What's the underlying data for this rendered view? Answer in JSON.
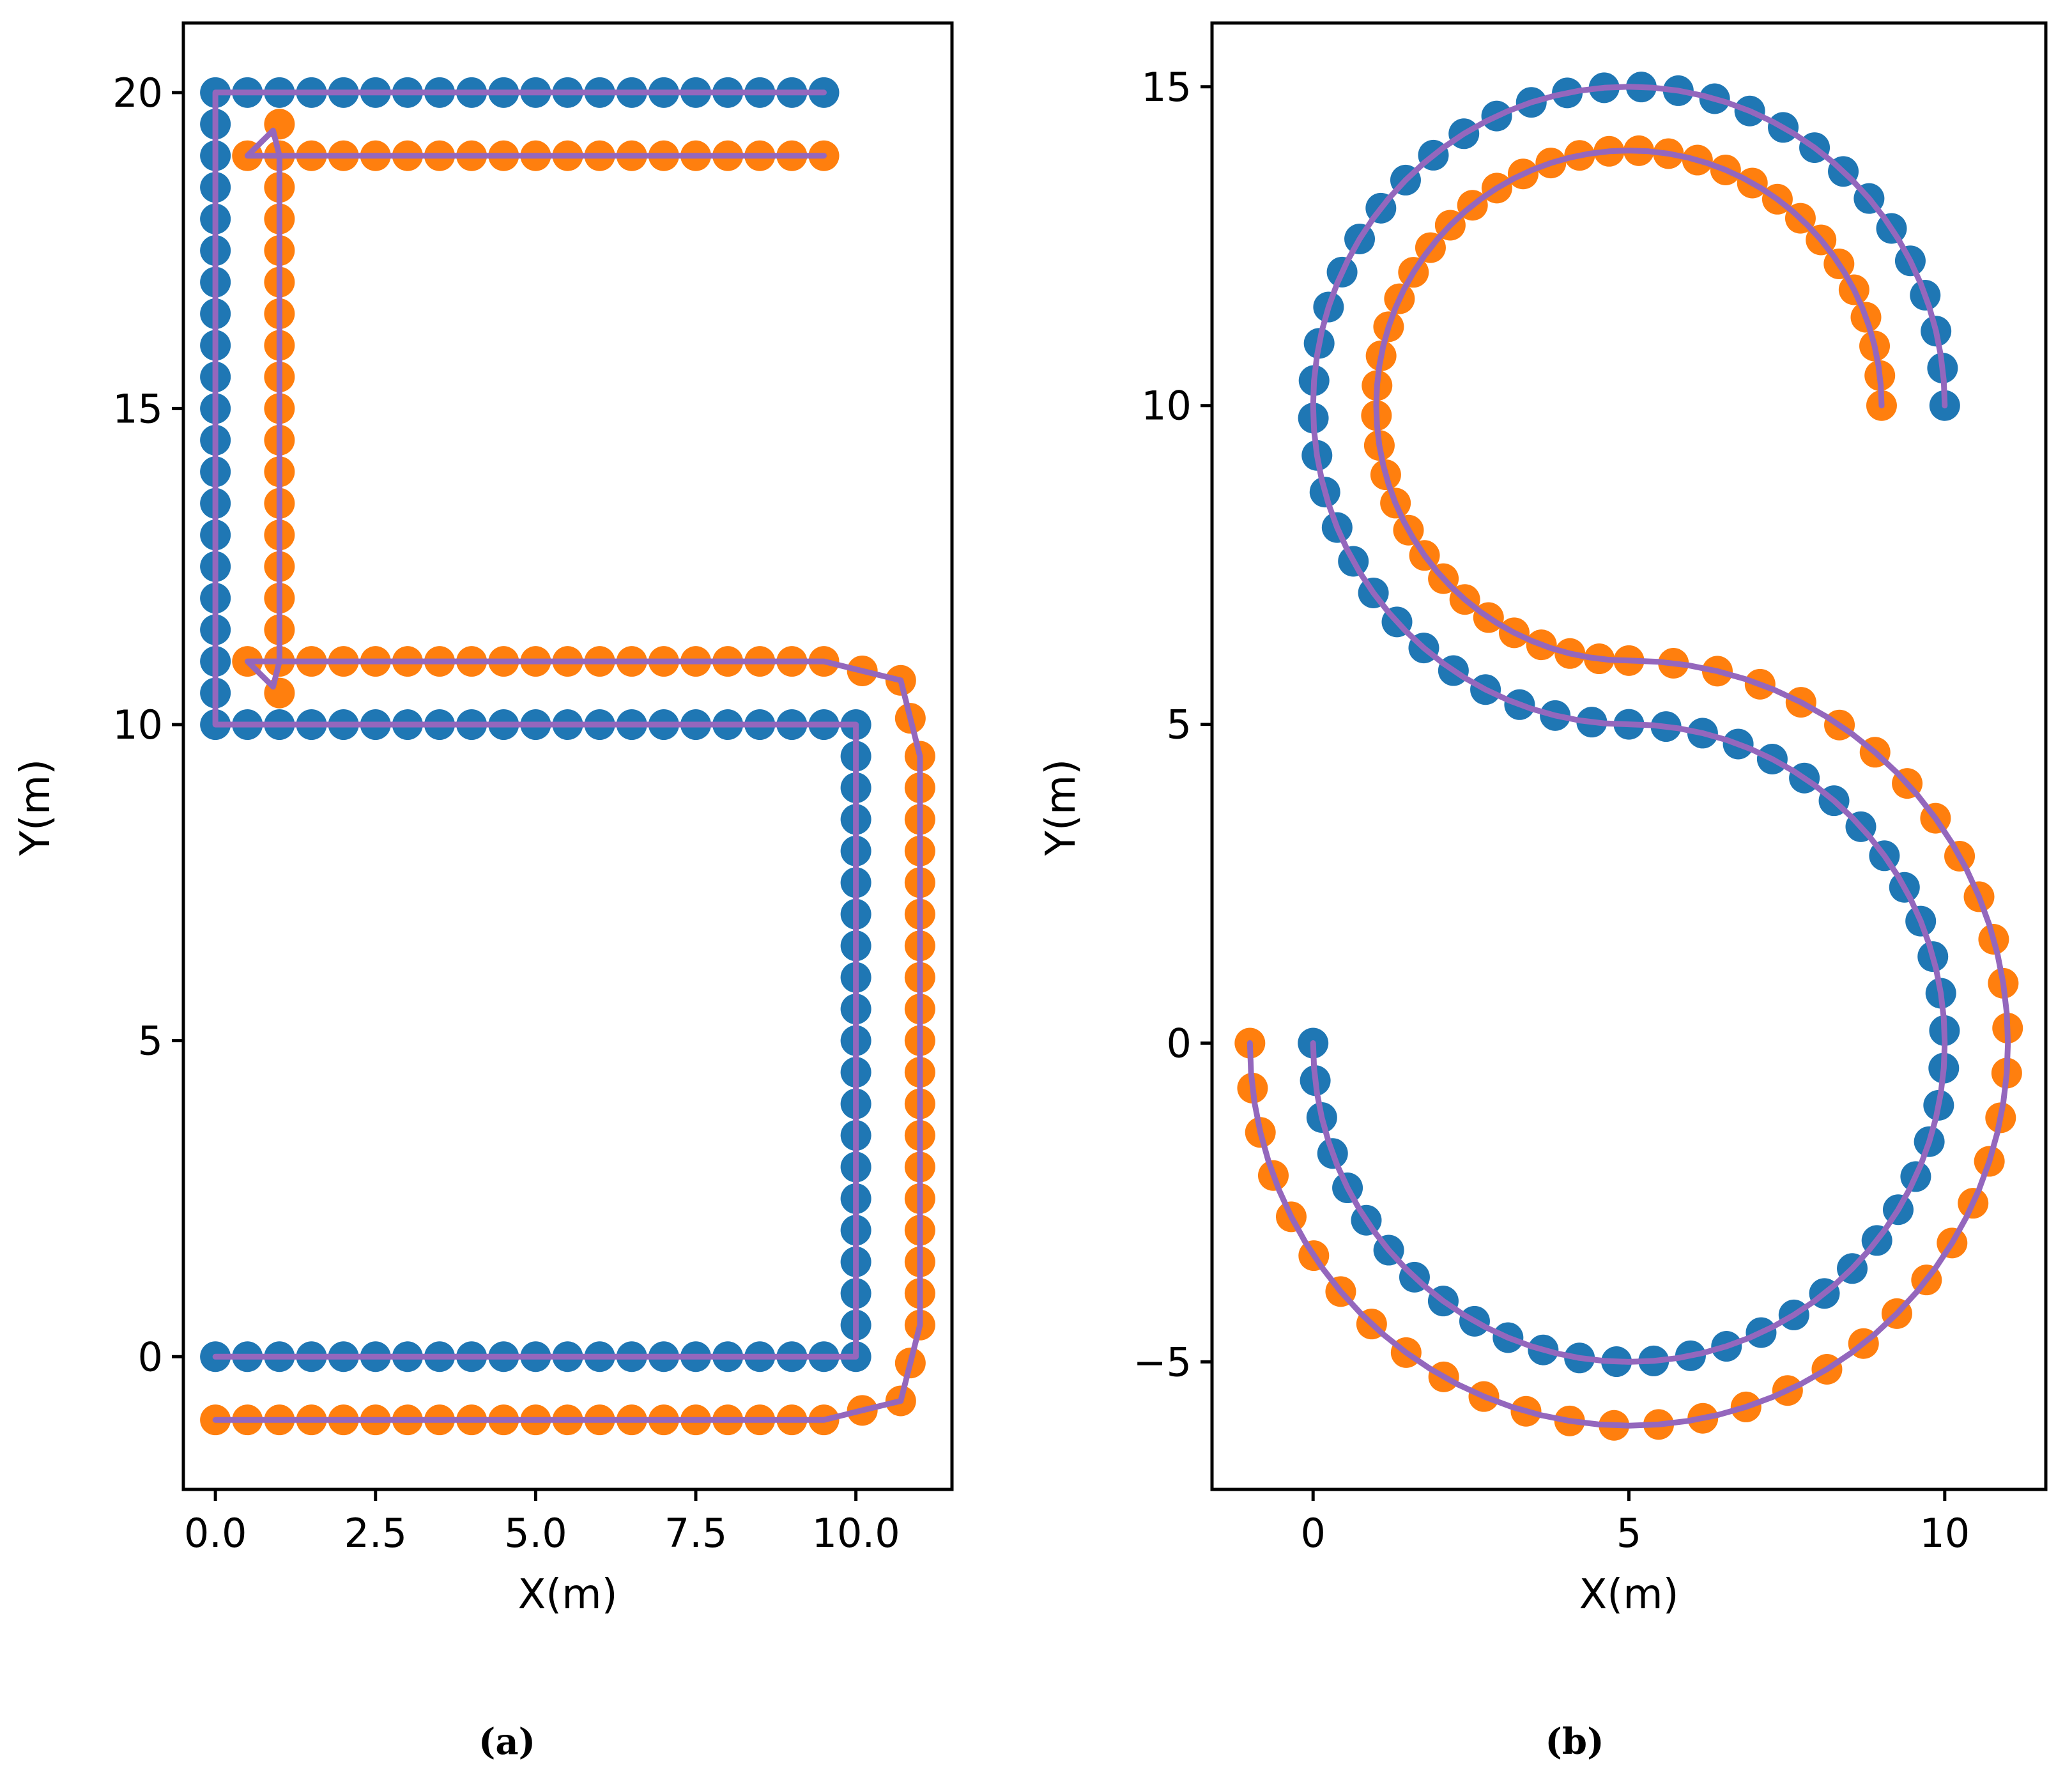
{
  "chart_data": [
    {
      "type": "scatter",
      "caption": "(a)",
      "xlabel": "X(m)",
      "ylabel": "Y(m)",
      "xlim": [
        -0.5,
        11.5
      ],
      "ylim": [
        -2.1,
        21.1
      ],
      "xticks": [
        0,
        2.5,
        5,
        7.5,
        10
      ],
      "xtick_labels": [
        "0.0",
        "2.5",
        "5.0",
        "7.5",
        "10.0"
      ],
      "yticks": [
        0,
        5,
        10,
        15,
        20
      ],
      "ytick_labels": [
        "0",
        "5",
        "10",
        "15",
        "20"
      ],
      "grid": false,
      "series": [
        {
          "color": "#1f77b4",
          "marker": "circle",
          "path": [
            [
              9.5,
              20
            ],
            [
              0,
              20
            ],
            [
              0,
              10
            ],
            [
              10,
              10
            ],
            [
              10,
              0
            ],
            [
              0,
              0
            ]
          ],
          "step": 0.5
        },
        {
          "color": "#ff7f0e",
          "marker": "circle",
          "path": [
            [
              9.5,
              19
            ],
            [
              0.5,
              19
            ],
            [
              1,
              19.5
            ],
            [
              1,
              10.5
            ],
            [
              0.5,
              11
            ],
            [
              9.5,
              11
            ],
            [
              10.7,
              10.7
            ],
            [
              11,
              9.5
            ],
            [
              11,
              0.5
            ],
            [
              10.7,
              -0.7
            ],
            [
              9.5,
              -1
            ],
            [
              0,
              -1
            ]
          ],
          "step": 0.5
        },
        {
          "color": "#9467bd",
          "marker": "line",
          "path": [
            [
              9.5,
              19
            ],
            [
              1,
              19
            ],
            [
              0.9,
              19.4
            ],
            [
              0.5,
              19
            ],
            [
              1,
              19
            ],
            [
              1,
              11
            ],
            [
              0.9,
              10.6
            ],
            [
              0.5,
              11
            ],
            [
              9.5,
              11
            ],
            [
              10.7,
              10.7
            ],
            [
              11,
              9.5
            ],
            [
              11,
              0.5
            ],
            [
              10.7,
              -0.7
            ],
            [
              9.5,
              -1
            ],
            [
              0,
              -1
            ]
          ]
        },
        {
          "color": "#9467bd",
          "marker": "line",
          "path": [
            [
              9.5,
              20
            ],
            [
              0,
              20
            ],
            [
              0,
              10
            ],
            [
              10,
              10
            ],
            [
              10,
              0
            ],
            [
              0,
              0
            ]
          ]
        }
      ]
    },
    {
      "type": "scatter",
      "caption": "(b)",
      "xlabel": "X(m)",
      "ylabel": "Y(m)",
      "xlim": [
        -1.6,
        11.6
      ],
      "ylim": [
        -7,
        16
      ],
      "xticks": [
        0,
        5,
        10
      ],
      "xtick_labels": [
        "0",
        "5",
        "10"
      ],
      "yticks": [
        -5,
        0,
        5,
        10,
        15
      ],
      "ytick_labels": [
        "−5",
        "0",
        "5",
        "10",
        "15"
      ],
      "grid": false,
      "series": [
        {
          "color": "#1f77b4",
          "marker": "circle",
          "arcs": [
            {
              "cx": 5,
              "cy": 10,
              "r": 5,
              "start_deg": 0,
              "end_deg": 270,
              "direction": "ccw"
            },
            {
              "cx": 5,
              "cy": 0,
              "r": 5,
              "start_deg": 90,
              "end_deg": -180,
              "direction": "cw"
            }
          ],
          "points_per_arc": 40
        },
        {
          "color": "#ff7f0e",
          "marker": "circle",
          "arcs": [
            {
              "cx": 5,
              "cy": 10,
              "r": 4,
              "start_deg": 0,
              "end_deg": 270,
              "direction": "ccw"
            },
            {
              "cx": 5,
              "cy": 0,
              "r": 6,
              "start_deg": 90,
              "end_deg": -180,
              "direction": "cw"
            }
          ],
          "points_per_arc": 40
        },
        {
          "color": "#9467bd",
          "marker": "line",
          "arcs": [
            {
              "cx": 5,
              "cy": 10,
              "r": 5,
              "start_deg": 0,
              "end_deg": 270,
              "direction": "ccw"
            },
            {
              "cx": 5,
              "cy": 0,
              "r": 5,
              "start_deg": 90,
              "end_deg": -180,
              "direction": "cw"
            }
          ]
        },
        {
          "color": "#9467bd",
          "marker": "line",
          "arcs": [
            {
              "cx": 5,
              "cy": 10,
              "r": 4,
              "start_deg": 0,
              "end_deg": 270,
              "direction": "ccw"
            },
            {
              "cx": 5,
              "cy": 0,
              "r": 6,
              "start_deg": 90,
              "end_deg": -180,
              "direction": "cw"
            }
          ]
        }
      ]
    }
  ]
}
